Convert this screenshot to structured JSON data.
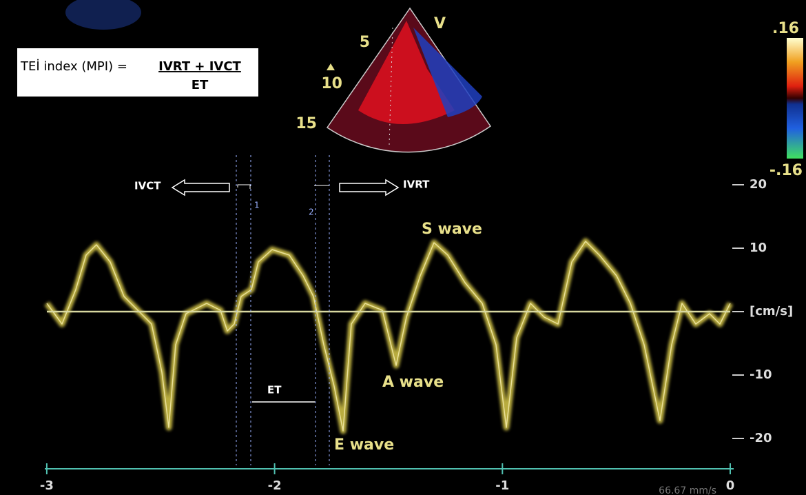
{
  "formula": {
    "lhs": "TEİ index (MPI) =",
    "numerator": "IVRT + IVCT",
    "denominator": "ET"
  },
  "sector": {
    "label": "V",
    "depth_labels": [
      5,
      10,
      15
    ]
  },
  "color_scale": {
    "top": ".16",
    "bottom": "-.16"
  },
  "annotations": {
    "ivct": "IVCT",
    "ivrt": "IVRT",
    "marker_1": "1",
    "marker_2": "2",
    "s_wave": "S wave",
    "a_wave": "A wave",
    "e_wave": "E wave",
    "et": "ET"
  },
  "axis": {
    "yticks": [
      20,
      10,
      {
        "value": 0,
        "label": "[cm/s]"
      },
      -10,
      -20
    ],
    "xticks": [
      -3,
      -2,
      -1,
      0
    ],
    "sweep_speed": "66.67 mm/s"
  }
}
